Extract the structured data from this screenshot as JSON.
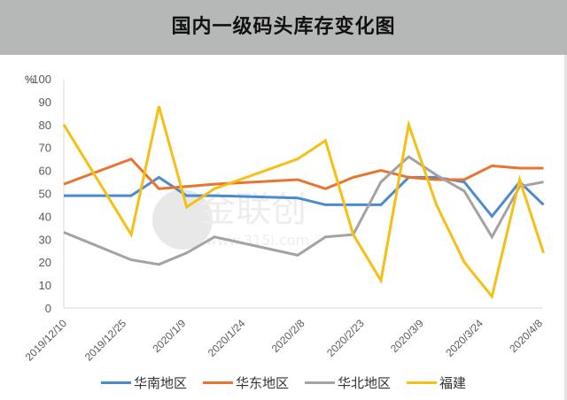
{
  "title": "国内一级码头库存变化图",
  "chart_data": {
    "type": "line",
    "title": "国内一级码头库存变化图",
    "xlabel": "",
    "ylabel": "%",
    "ylim": [
      0,
      100
    ],
    "yticks": [
      0,
      10,
      20,
      30,
      40,
      50,
      60,
      70,
      80,
      90,
      100
    ],
    "x_tick_labels": [
      "2019/12/10",
      "2019/12/25",
      "2020/1/9",
      "2020/1/24",
      "2020/2/8",
      "2020/2/23",
      "2020/3/9",
      "2020/3/24",
      "2020/4/8"
    ],
    "x": [
      "2019/12/10",
      "2019/12/27",
      "2020/1/3",
      "2020/1/10",
      "2020/1/17",
      "2020/2/7",
      "2020/2/14",
      "2020/2/21",
      "2020/2/28",
      "2020/3/6",
      "2020/3/13",
      "2020/3/20",
      "2020/3/27",
      "2020/4/3",
      "2020/4/10"
    ],
    "x_day_offsets": [
      0,
      17,
      24,
      31,
      38,
      59,
      66,
      73,
      80,
      87,
      94,
      101,
      108,
      115,
      121
    ],
    "grid": false,
    "legend_position": "bottom",
    "series": [
      {
        "name": "华南地区",
        "color": "#4a8bd0",
        "values": [
          49,
          49,
          57,
          49,
          49,
          48,
          45,
          45,
          45,
          57,
          57,
          55,
          40,
          55,
          45
        ]
      },
      {
        "name": "华东地区",
        "color": "#e8742f",
        "values": [
          54,
          65,
          52,
          53,
          54,
          56,
          52,
          57,
          60,
          57,
          56,
          56,
          62,
          61,
          61
        ]
      },
      {
        "name": "华北地区",
        "color": "#a3a3a3",
        "values": [
          33,
          21,
          19,
          24,
          31,
          23,
          31,
          32,
          55,
          66,
          58,
          51,
          31,
          53,
          55
        ]
      },
      {
        "name": "福建",
        "color": "#f7be13",
        "values": [
          80,
          32,
          88,
          44,
          52,
          65,
          73,
          32,
          12,
          80,
          45,
          20,
          5,
          56,
          24
        ]
      }
    ]
  },
  "legend": [
    {
      "label": "华南地区",
      "color": "#4a8bd0"
    },
    {
      "label": "华东地区",
      "color": "#e8742f"
    },
    {
      "label": "华北地区",
      "color": "#a3a3a3"
    },
    {
      "label": "福建",
      "color": "#f7be13"
    }
  ],
  "watermark": {
    "brand": "金联创",
    "url": "www.315i.com"
  },
  "colors": {
    "title_bar": "#b6b8b7",
    "axis": "#d9d9d9",
    "tick_text": "#595959"
  }
}
